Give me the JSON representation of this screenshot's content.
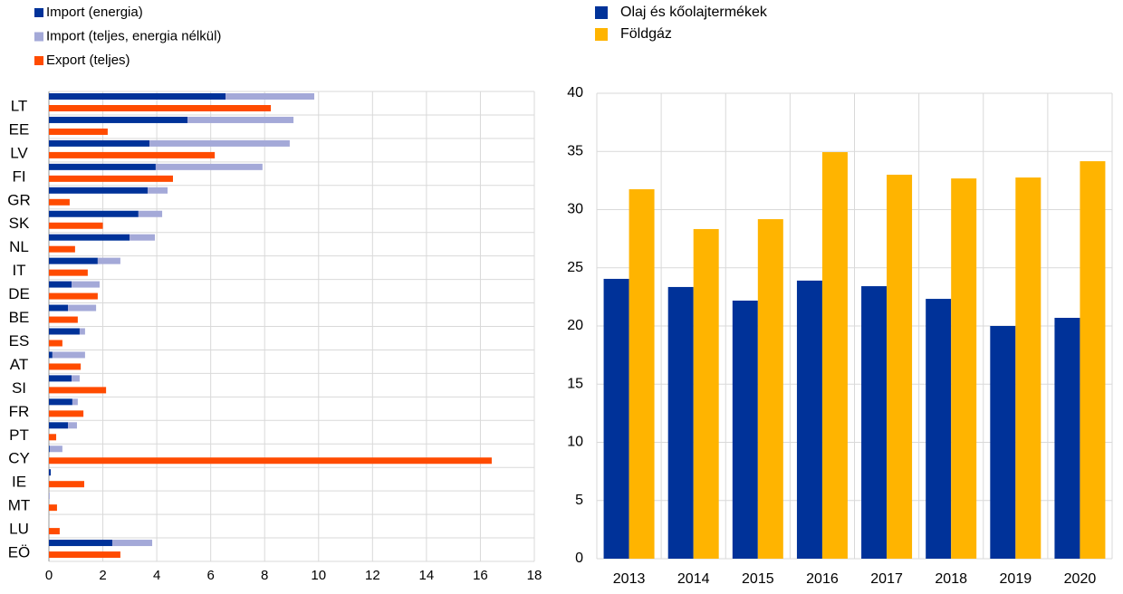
{
  "chart_data": [
    {
      "type": "hbar",
      "categories": [
        "LT",
        "EE",
        "LV",
        "FI",
        "GR",
        "SK",
        "NL",
        "IT",
        "DE",
        "BE",
        "ES",
        "AT",
        "SI",
        "FR",
        "PT",
        "CY",
        "IE",
        "MT",
        "LU",
        "EÖ"
      ],
      "series": [
        {
          "name": "Import (energia)",
          "color": "#003299",
          "stack": 0,
          "values": [
            6.55,
            5.14,
            3.73,
            3.96,
            3.66,
            3.32,
            2.99,
            1.81,
            0.84,
            0.71,
            1.14,
            0.13,
            0.84,
            0.87,
            0.71,
            0.03,
            0.07,
            0,
            0,
            2.35
          ]
        },
        {
          "name": "Import (teljes, energia nélkül)",
          "color": "#a4a9d8",
          "stack": 0,
          "values": [
            3.29,
            3.93,
            5.2,
            3.96,
            0.74,
            0.88,
            0.94,
            0.84,
            1.04,
            1.04,
            0.2,
            1.21,
            0.3,
            0.2,
            0.33,
            0.47,
            0,
            0.03,
            0,
            1.48
          ]
        },
        {
          "name": "Export (teljes)",
          "color": "#ff4b00",
          "stack": 1,
          "values": [
            8.23,
            2.18,
            6.15,
            4.6,
            0.77,
            2.0,
            0.97,
            1.44,
            1.81,
            1.07,
            0.5,
            1.18,
            2.12,
            1.28,
            0.27,
            16.42,
            1.31,
            0.3,
            0.4,
            2.65
          ]
        }
      ],
      "xlim": [
        0,
        18
      ],
      "xticks": [
        0,
        2,
        4,
        6,
        8,
        10,
        12,
        14,
        16,
        18
      ],
      "grid": true,
      "legend": "top-left"
    },
    {
      "type": "bar",
      "categories": [
        "2013",
        "2014",
        "2015",
        "2016",
        "2017",
        "2018",
        "2019",
        "2020"
      ],
      "series": [
        {
          "name": "Olaj és kőolajtermékek",
          "color": "#003299",
          "values": [
            24.05,
            23.35,
            22.18,
            23.9,
            23.42,
            22.33,
            20.0,
            20.7
          ]
        },
        {
          "name": "Földgáz",
          "color": "#ffb400",
          "values": [
            31.75,
            28.33,
            29.18,
            34.94,
            33.0,
            32.68,
            32.76,
            34.16
          ]
        }
      ],
      "ylim": [
        0,
        40
      ],
      "yticks": [
        0,
        5,
        10,
        15,
        20,
        25,
        30,
        35,
        40
      ],
      "grid": true,
      "legend": "top-left"
    }
  ]
}
